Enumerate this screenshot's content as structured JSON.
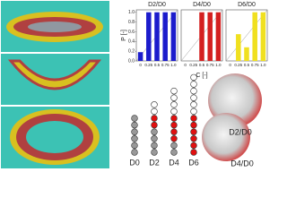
{
  "chart_data": [
    {
      "type": "bar",
      "title": "D2/D0",
      "categories": [
        "0",
        "0.25",
        "0.5",
        "0.75",
        "1.0"
      ],
      "values": [
        0.18,
        1.0,
        1.0,
        1.0,
        1.0
      ],
      "color": "#1c1ccc",
      "ylim": [
        0,
        1.05
      ],
      "yticks": [
        {
          "value": 0,
          "label": "0.0"
        },
        {
          "value": 0.2,
          "label": "0.2"
        },
        {
          "value": 0.4,
          "label": "0.4"
        },
        {
          "value": 0.6,
          "label": "0.6"
        },
        {
          "value": 0.8,
          "label": "0.8"
        },
        {
          "value": 1.0,
          "label": "1.0"
        }
      ],
      "y_label": "P [-]"
    },
    {
      "type": "bar",
      "title": "D4/D0",
      "categories": [
        "0",
        "0.25",
        "0.5",
        "0.75",
        "1.0"
      ],
      "values": [
        0,
        0,
        1.0,
        1.0,
        1.0
      ],
      "color": "#d42020",
      "ylim": [
        0,
        1.05
      ],
      "x_label": "C [-]"
    },
    {
      "type": "bar",
      "title": "D6/D0",
      "categories": [
        "0",
        "0.25",
        "0.5",
        "0.75",
        "1.0"
      ],
      "values": [
        0,
        0.55,
        0.28,
        1.0,
        1.0
      ],
      "color": "#f0e020",
      "ylim": [
        0,
        1.05
      ]
    }
  ],
  "diagram": {
    "labels": [
      "D0",
      "D2",
      "D4",
      "D6"
    ],
    "spheres": [
      "D2/D0",
      "D4/D0"
    ]
  }
}
